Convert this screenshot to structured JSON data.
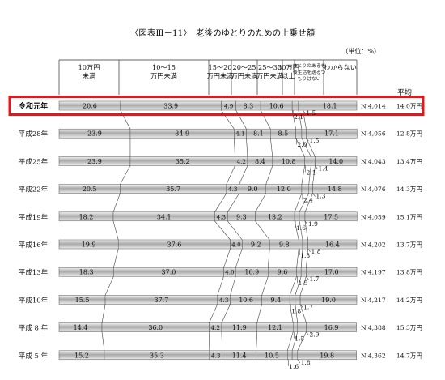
{
  "chart_data": {
    "type": "bar",
    "stacked": true,
    "orientation": "horizontal",
    "normalized_to": 100,
    "title": "〈図表Ⅲ－11〉　老後のゆとりのための上乗せ額",
    "unit_label": "（単位：%）",
    "average_header": "平均",
    "categories": [
      "10万円\n未満",
      "10～15\n万円未満",
      "15～20\n万円未満",
      "20～25\n万円未満",
      "25～30\n万円未満",
      "30万円\n以上",
      "ゆとりのある老\n後生活を送るつ\nもりはない",
      "わからない"
    ],
    "series": [
      {
        "label": "令和元年",
        "values": [
          20.6,
          33.9,
          4.9,
          8.3,
          10.6,
          2.1,
          1.5,
          18.1
        ],
        "n": "N:4,014",
        "avg": "14.0万円",
        "highlight": true
      },
      {
        "label": "平成28年",
        "values": [
          23.9,
          34.9,
          4.1,
          8.1,
          8.5,
          2.0,
          1.5,
          17.1
        ],
        "n": "N:4,056",
        "avg": "12.8万円"
      },
      {
        "label": "平成25年",
        "values": [
          23.9,
          35.2,
          4.2,
          8.4,
          10.8,
          2.1,
          1.4,
          14.0
        ],
        "n": "N:4,043",
        "avg": "13.4万円"
      },
      {
        "label": "平成22年",
        "values": [
          20.5,
          35.7,
          4.3,
          9.0,
          12.0,
          2.4,
          1.3,
          14.8
        ],
        "n": "N:4,076",
        "avg": "14.3万円"
      },
      {
        "label": "平成19年",
        "values": [
          18.2,
          34.1,
          4.3,
          9.3,
          13.2,
          1.6,
          1.9,
          17.5
        ],
        "n": "N:4,059",
        "avg": "15.1万円"
      },
      {
        "label": "平成16年",
        "values": [
          19.9,
          37.6,
          4.0,
          9.2,
          9.8,
          1.3,
          1.8,
          16.4
        ],
        "n": "N:4,202",
        "avg": "13.7万円"
      },
      {
        "label": "平成13年",
        "values": [
          18.3,
          37.0,
          4.0,
          10.9,
          9.6,
          1.5,
          1.7,
          17.0
        ],
        "n": "N:4,197",
        "avg": "13.8万円"
      },
      {
        "label": "平成10年",
        "values": [
          15.5,
          37.7,
          4.3,
          10.6,
          9.4,
          1.8,
          1.7,
          19.0
        ],
        "n": "N:4,217",
        "avg": "14.2万円"
      },
      {
        "label": "平成 8 年",
        "values": [
          14.4,
          36.0,
          4.2,
          11.9,
          12.1,
          1.5,
          2.9,
          16.9
        ],
        "n": "N:4,388",
        "avg": "15.3万円"
      },
      {
        "label": "平成 5 年",
        "values": [
          15.2,
          35.3,
          4.3,
          11.4,
          10.5,
          1.6,
          1.8,
          19.8
        ],
        "n": "N:4,362",
        "avg": "14.7万円"
      }
    ],
    "highlight_color": "#e0191e"
  }
}
